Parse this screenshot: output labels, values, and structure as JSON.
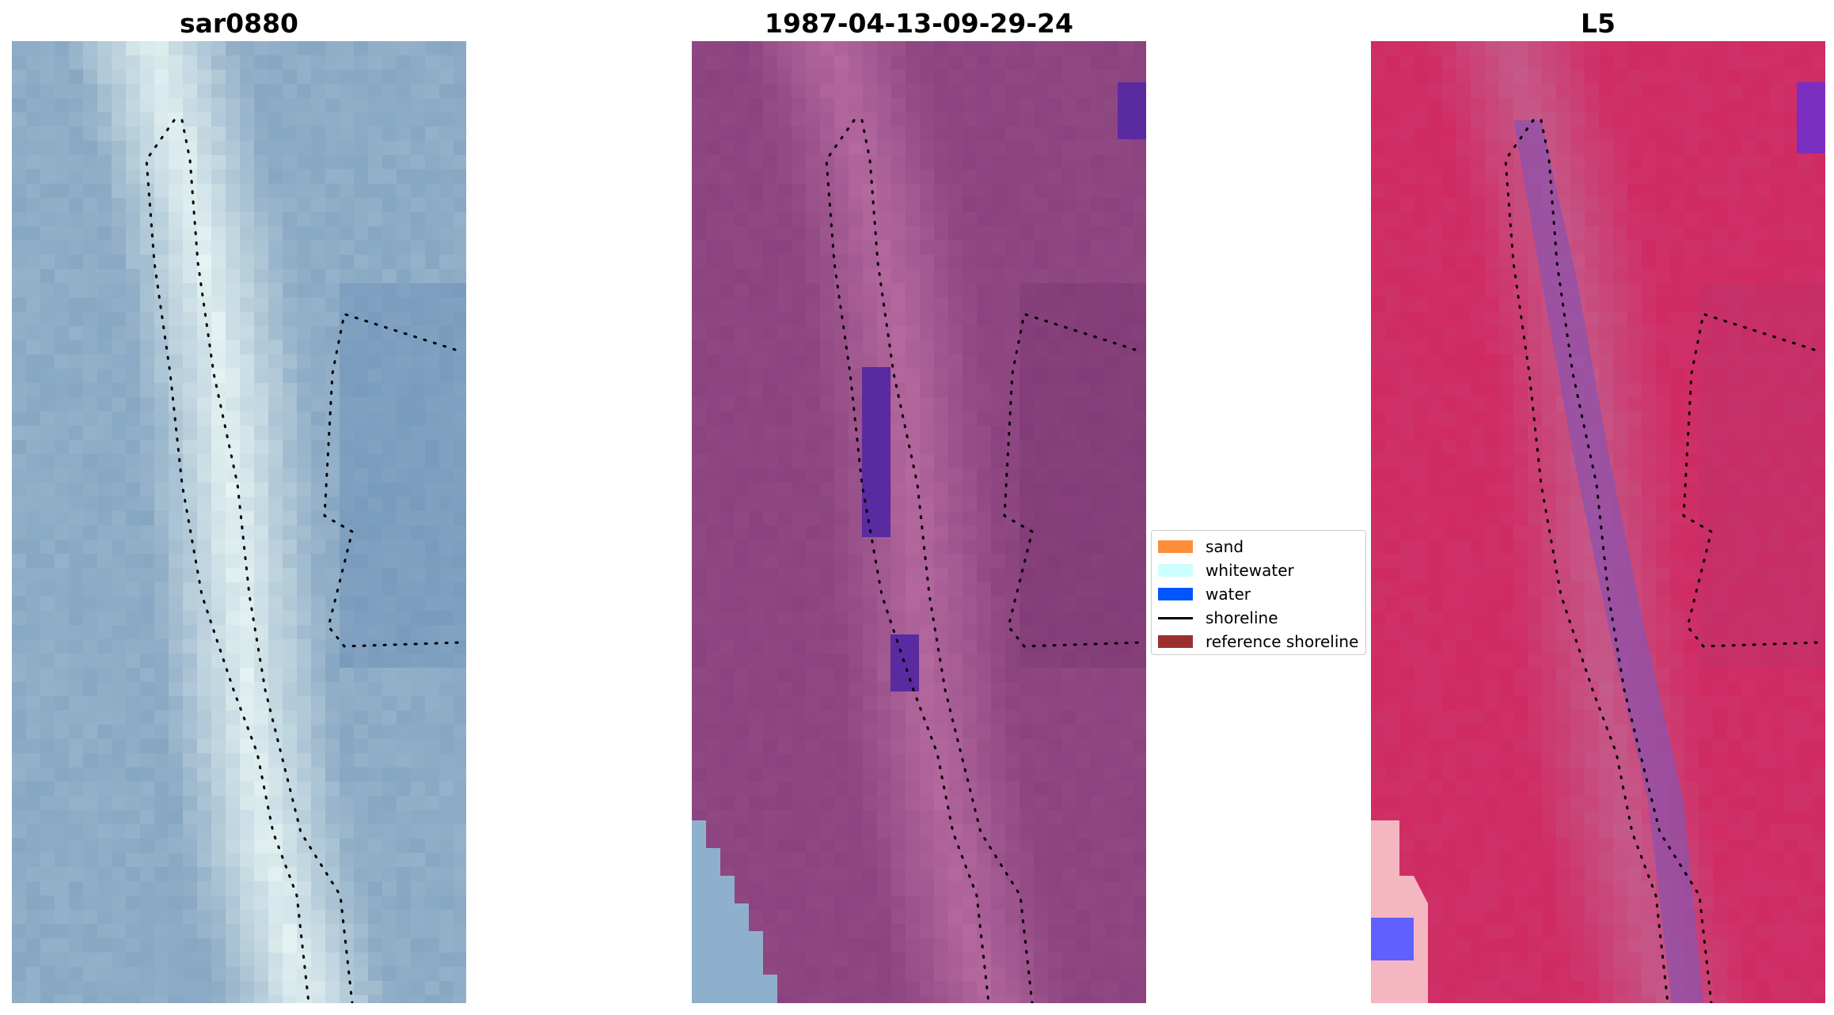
{
  "panels": [
    {
      "title": "sar0880",
      "name": "rgb-image"
    },
    {
      "title": "1987-04-13-09-29-24",
      "name": "classified-image"
    },
    {
      "title": "L5",
      "name": "mndwi-image"
    }
  ],
  "legend": {
    "items": [
      {
        "label": "sand",
        "color": "#ff8c3a",
        "kind": "patch"
      },
      {
        "label": "whitewater",
        "color": "#ccffff",
        "kind": "patch"
      },
      {
        "label": "water",
        "color": "#0055ff",
        "kind": "patch"
      },
      {
        "label": "shoreline",
        "color": "#000000",
        "kind": "line"
      },
      {
        "label": "reference shoreline",
        "color": "#9b2f30",
        "kind": "patch"
      }
    ]
  },
  "colors": {
    "rgb_base": "#87a6c2",
    "classified_base": "#8a437e",
    "classified_water_patch": "#5a2aa0",
    "classified_corner": "#8fb0cc",
    "mndwi_base": "#d02a62",
    "mndwi_shore_stripe": "#8e52ab",
    "mndwi_corner_blue": "#6060ff",
    "mndwi_corner_pink": "#f4b6c0",
    "shoreline_dots": "#000000"
  }
}
